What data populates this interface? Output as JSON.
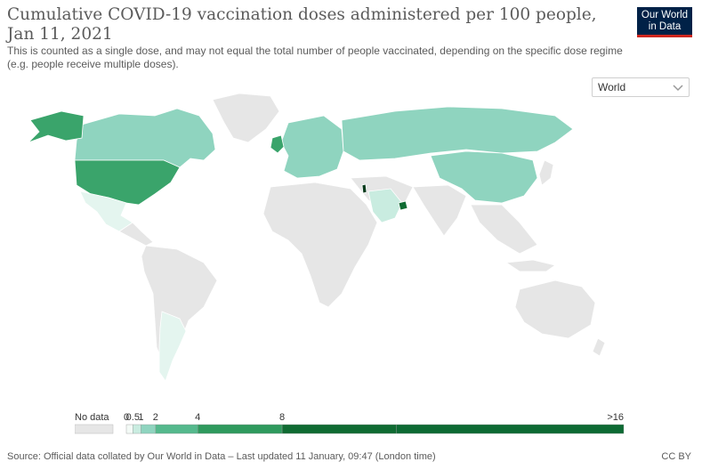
{
  "header": {
    "title": "Cumulative COVID-19 vaccination doses administered per 100 people, Jan 11, 2021",
    "subtitle": "This is counted as a single dose, and may not equal the total number of people vaccinated, depending on the specific dose regime (e.g. people receive multiple doses).",
    "logo_line1": "Our World",
    "logo_line2": "in Data"
  },
  "controls": {
    "region_selected": "World"
  },
  "legend": {
    "no_data_label": "No data",
    "bins": [
      {
        "label": "0",
        "color": "#f3faf6"
      },
      {
        "label": "0.5",
        "color": "#c9ece0"
      },
      {
        "label": "1",
        "color": "#8fd4bf"
      },
      {
        "label": "2",
        "color": "#55b98d"
      },
      {
        "label": "4",
        "color": "#2f9a5e"
      },
      {
        "label": "8",
        "color": "#0f6b32"
      }
    ],
    "last_label": ">16",
    "no_data_color": "#e6e6e6"
  },
  "map_data": {
    "regions": [
      {
        "name": "United States",
        "bin": "2-4",
        "color": "#3aa46b"
      },
      {
        "name": "Alaska",
        "bin": "2-4",
        "color": "#3aa46b"
      },
      {
        "name": "Canada",
        "bin": "0.5-1",
        "color": "#8fd4bf"
      },
      {
        "name": "Mexico",
        "bin": "0-0.5",
        "color": "#e4f5ef"
      },
      {
        "name": "Argentina",
        "bin": "0-0.5",
        "color": "#e4f5ef"
      },
      {
        "name": "Russia",
        "bin": "0.5-1",
        "color": "#8fd4bf"
      },
      {
        "name": "China",
        "bin": "0.5-1",
        "color": "#8fd4bf"
      },
      {
        "name": "United Kingdom",
        "bin": "2-4",
        "color": "#3aa46b"
      },
      {
        "name": "Europe",
        "bin": "0.5-1",
        "color": "#8fd4bf"
      },
      {
        "name": "Saudi Arabia",
        "bin": "0.5-1",
        "color": "#c9ece0"
      },
      {
        "name": "United Arab Emirates",
        "bin": "8-16",
        "color": "#0f6b32"
      },
      {
        "name": "Israel",
        "bin": ">16",
        "color": "#063b1c"
      }
    ]
  },
  "footer": {
    "source": "Source: Official data collated by Our World in Data – Last updated 11 January, 09:47 (London time)",
    "license": "CC BY"
  }
}
